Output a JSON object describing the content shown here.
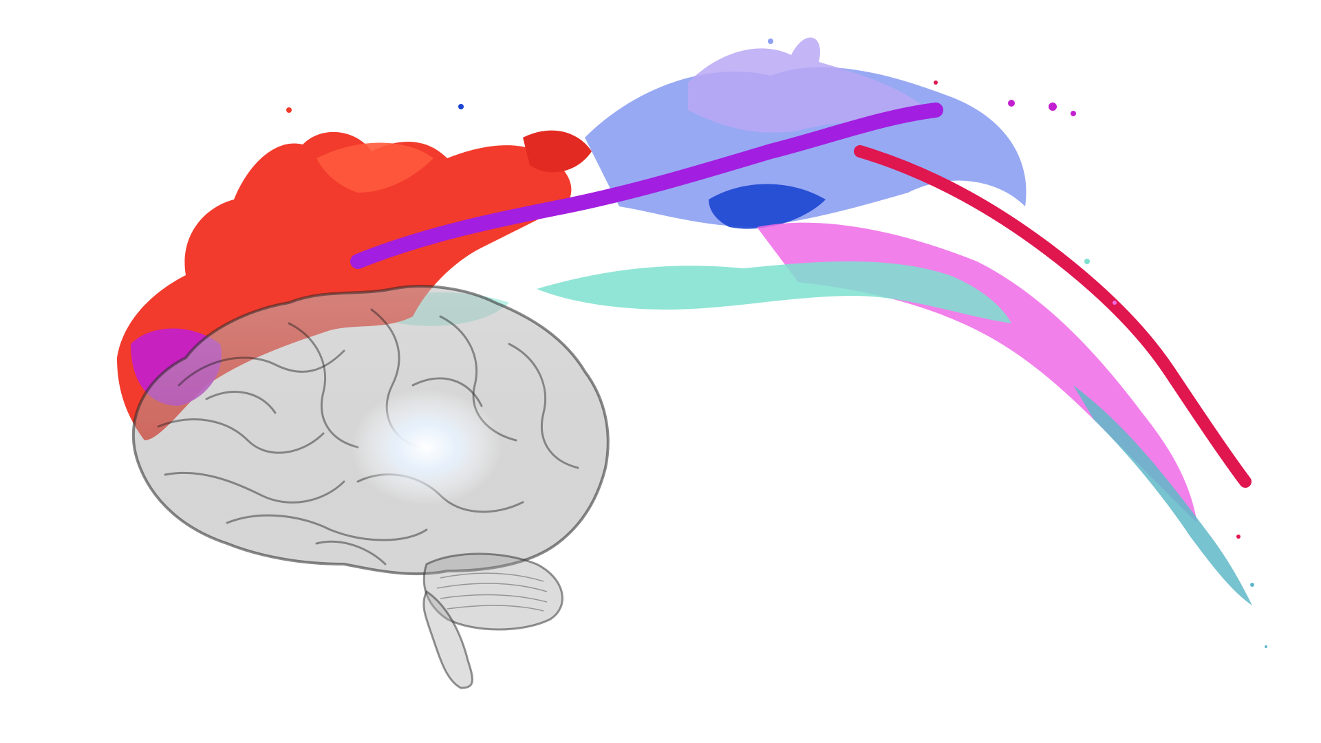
{
  "scene": {
    "subject": "brain-paint-splash",
    "colors": {
      "background": "#ffffff",
      "red": "#f23b2c",
      "orange_red": "#ff5a3c",
      "magenta": "#c21fd0",
      "purple": "#a21ee0",
      "crimson": "#e0164f",
      "royal_blue": "#1c46d2",
      "periwinkle": "#8da0f2",
      "lavender": "#b8a8f5",
      "mint": "#7ce0cf",
      "pink": "#f06ae6",
      "teal": "#5fb8c8",
      "brain_outline": "#2a2a2a",
      "brain_glow": "#eef6ff"
    }
  }
}
